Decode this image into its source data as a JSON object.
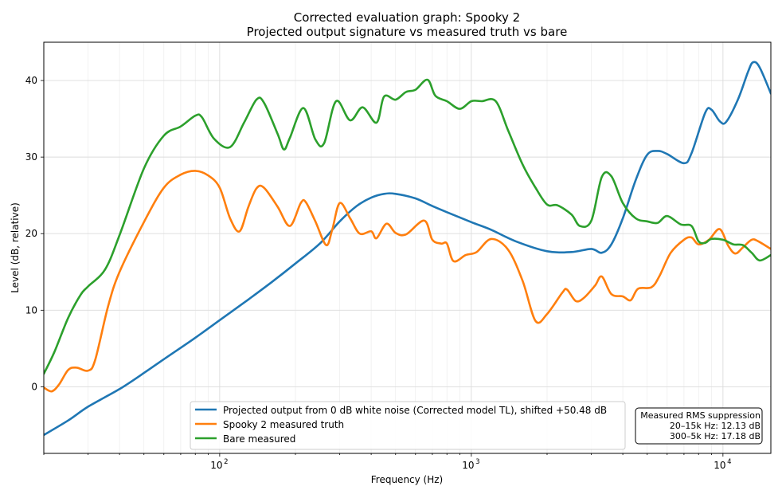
{
  "chart_data": {
    "type": "line",
    "title": "Corrected evaluation graph: Spooky 2",
    "subtitle": "Projected output signature vs measured truth vs bare",
    "xlabel": "Frequency (Hz)",
    "ylabel": "Level (dB, relative)",
    "xscale": "log",
    "xlim": [
      20,
      15500
    ],
    "ylim": [
      -8.7,
      45
    ],
    "x_ticks": [
      {
        "value": 100,
        "base": "10",
        "exp": "2"
      },
      {
        "value": 1000,
        "base": "10",
        "exp": "3"
      },
      {
        "value": 10000,
        "base": "10",
        "exp": "4"
      }
    ],
    "y_ticks": [
      0,
      10,
      20,
      30,
      40
    ],
    "grid": true,
    "legend_position": "bottom-center",
    "series": [
      {
        "name": "Projected output from 0 dB white noise (Corrected model TL), shifted +50.48 dB",
        "color": "#1f77b4",
        "points": [
          [
            20,
            -6.3
          ],
          [
            25,
            -4.4
          ],
          [
            30,
            -2.6
          ],
          [
            40,
            -0.3
          ],
          [
            50,
            1.8
          ],
          [
            60,
            3.6
          ],
          [
            80,
            6.4
          ],
          [
            100,
            8.7
          ],
          [
            130,
            11.4
          ],
          [
            160,
            13.6
          ],
          [
            200,
            16.1
          ],
          [
            250,
            18.7
          ],
          [
            300,
            21.6
          ],
          [
            350,
            23.6
          ],
          [
            400,
            24.7
          ],
          [
            450,
            25.2
          ],
          [
            500,
            25.2
          ],
          [
            600,
            24.6
          ],
          [
            700,
            23.6
          ],
          [
            800,
            22.8
          ],
          [
            1000,
            21.5
          ],
          [
            1200,
            20.5
          ],
          [
            1500,
            19.0
          ],
          [
            2000,
            17.7
          ],
          [
            2500,
            17.6
          ],
          [
            3000,
            18.0
          ],
          [
            3300,
            17.5
          ],
          [
            3600,
            18.6
          ],
          [
            4000,
            22.0
          ],
          [
            4500,
            27.0
          ],
          [
            5000,
            30.3
          ],
          [
            5500,
            30.8
          ],
          [
            6000,
            30.4
          ],
          [
            7000,
            29.2
          ],
          [
            7500,
            30.5
          ],
          [
            8500,
            35.8
          ],
          [
            9000,
            36.2
          ],
          [
            9700,
            34.7
          ],
          [
            10300,
            34.6
          ],
          [
            11500,
            37.6
          ],
          [
            12600,
            41.2
          ],
          [
            13200,
            42.4
          ],
          [
            14000,
            41.7
          ],
          [
            15500,
            38.3
          ]
        ]
      },
      {
        "name": "Spooky 2 measured truth",
        "color": "#ff7f0e",
        "points": [
          [
            20,
            -0.1
          ],
          [
            21.5,
            -0.6
          ],
          [
            23,
            0.3
          ],
          [
            25,
            2.2
          ],
          [
            27,
            2.5
          ],
          [
            30,
            2.1
          ],
          [
            32,
            3.5
          ],
          [
            36,
            10.5
          ],
          [
            40,
            15.0
          ],
          [
            50,
            21.5
          ],
          [
            60,
            26.0
          ],
          [
            70,
            27.7
          ],
          [
            80,
            28.2
          ],
          [
            90,
            27.6
          ],
          [
            100,
            26.0
          ],
          [
            110,
            22.0
          ],
          [
            120,
            20.3
          ],
          [
            130,
            23.5
          ],
          [
            140,
            25.9
          ],
          [
            150,
            26.0
          ],
          [
            170,
            23.5
          ],
          [
            190,
            21.0
          ],
          [
            210,
            24.0
          ],
          [
            220,
            24.1
          ],
          [
            240,
            21.6
          ],
          [
            265,
            18.5
          ],
          [
            280,
            20.5
          ],
          [
            300,
            24.0
          ],
          [
            330,
            22.0
          ],
          [
            360,
            20.0
          ],
          [
            400,
            20.3
          ],
          [
            420,
            19.4
          ],
          [
            460,
            21.3
          ],
          [
            500,
            20.1
          ],
          [
            550,
            19.9
          ],
          [
            650,
            21.7
          ],
          [
            700,
            19.2
          ],
          [
            760,
            18.7
          ],
          [
            800,
            18.7
          ],
          [
            850,
            16.4
          ],
          [
            950,
            17.2
          ],
          [
            1050,
            17.6
          ],
          [
            1200,
            19.3
          ],
          [
            1400,
            17.9
          ],
          [
            1600,
            13.8
          ],
          [
            1800,
            8.6
          ],
          [
            2000,
            9.5
          ],
          [
            2300,
            12.3
          ],
          [
            2400,
            12.7
          ],
          [
            2600,
            11.2
          ],
          [
            2800,
            11.6
          ],
          [
            3100,
            13.2
          ],
          [
            3300,
            14.4
          ],
          [
            3600,
            12.1
          ],
          [
            4000,
            11.8
          ],
          [
            4300,
            11.3
          ],
          [
            4600,
            12.8
          ],
          [
            5200,
            13.0
          ],
          [
            5600,
            14.5
          ],
          [
            6200,
            17.5
          ],
          [
            7000,
            19.2
          ],
          [
            7500,
            19.5
          ],
          [
            8000,
            18.6
          ],
          [
            8800,
            19.2
          ],
          [
            9700,
            20.6
          ],
          [
            10500,
            18.4
          ],
          [
            11200,
            17.4
          ],
          [
            12000,
            18.2
          ],
          [
            13000,
            19.2
          ],
          [
            13800,
            19.0
          ],
          [
            15500,
            18.0
          ]
        ]
      },
      {
        "name": "Bare measured",
        "color": "#2ca02c",
        "points": [
          [
            20,
            1.7
          ],
          [
            22,
            4.5
          ],
          [
            25,
            9.0
          ],
          [
            28,
            12.0
          ],
          [
            30,
            13.1
          ],
          [
            35,
            15.3
          ],
          [
            40,
            19.8
          ],
          [
            50,
            28.5
          ],
          [
            60,
            32.8
          ],
          [
            70,
            34.0
          ],
          [
            80,
            35.4
          ],
          [
            85,
            35.2
          ],
          [
            95,
            32.4
          ],
          [
            110,
            31.3
          ],
          [
            125,
            34.5
          ],
          [
            140,
            37.5
          ],
          [
            150,
            37.1
          ],
          [
            170,
            33.0
          ],
          [
            180,
            31.0
          ],
          [
            190,
            32.5
          ],
          [
            215,
            36.4
          ],
          [
            240,
            32.3
          ],
          [
            260,
            31.8
          ],
          [
            290,
            37.3
          ],
          [
            330,
            34.8
          ],
          [
            370,
            36.5
          ],
          [
            420,
            34.5
          ],
          [
            450,
            37.9
          ],
          [
            500,
            37.5
          ],
          [
            550,
            38.5
          ],
          [
            600,
            38.8
          ],
          [
            670,
            40.1
          ],
          [
            720,
            38.0
          ],
          [
            800,
            37.3
          ],
          [
            900,
            36.3
          ],
          [
            1000,
            37.3
          ],
          [
            1100,
            37.3
          ],
          [
            1250,
            37.3
          ],
          [
            1400,
            33.5
          ],
          [
            1600,
            29.0
          ],
          [
            1800,
            26.0
          ],
          [
            2000,
            23.8
          ],
          [
            2200,
            23.7
          ],
          [
            2500,
            22.5
          ],
          [
            2700,
            21.0
          ],
          [
            3000,
            21.7
          ],
          [
            3300,
            27.4
          ],
          [
            3600,
            27.5
          ],
          [
            4000,
            24.0
          ],
          [
            4500,
            22.0
          ],
          [
            5000,
            21.6
          ],
          [
            5500,
            21.4
          ],
          [
            6000,
            22.3
          ],
          [
            6800,
            21.2
          ],
          [
            7500,
            21.0
          ],
          [
            8000,
            19.0
          ],
          [
            8500,
            18.8
          ],
          [
            9000,
            19.3
          ],
          [
            10000,
            19.2
          ],
          [
            11000,
            18.6
          ],
          [
            12000,
            18.5
          ],
          [
            13000,
            17.5
          ],
          [
            14000,
            16.5
          ],
          [
            15500,
            17.2
          ]
        ]
      }
    ],
    "annotation": {
      "title": "Measured RMS suppression",
      "lines": [
        "20–15k Hz: 12.13 dB",
        "300–5k Hz: 17.18 dB"
      ]
    }
  }
}
